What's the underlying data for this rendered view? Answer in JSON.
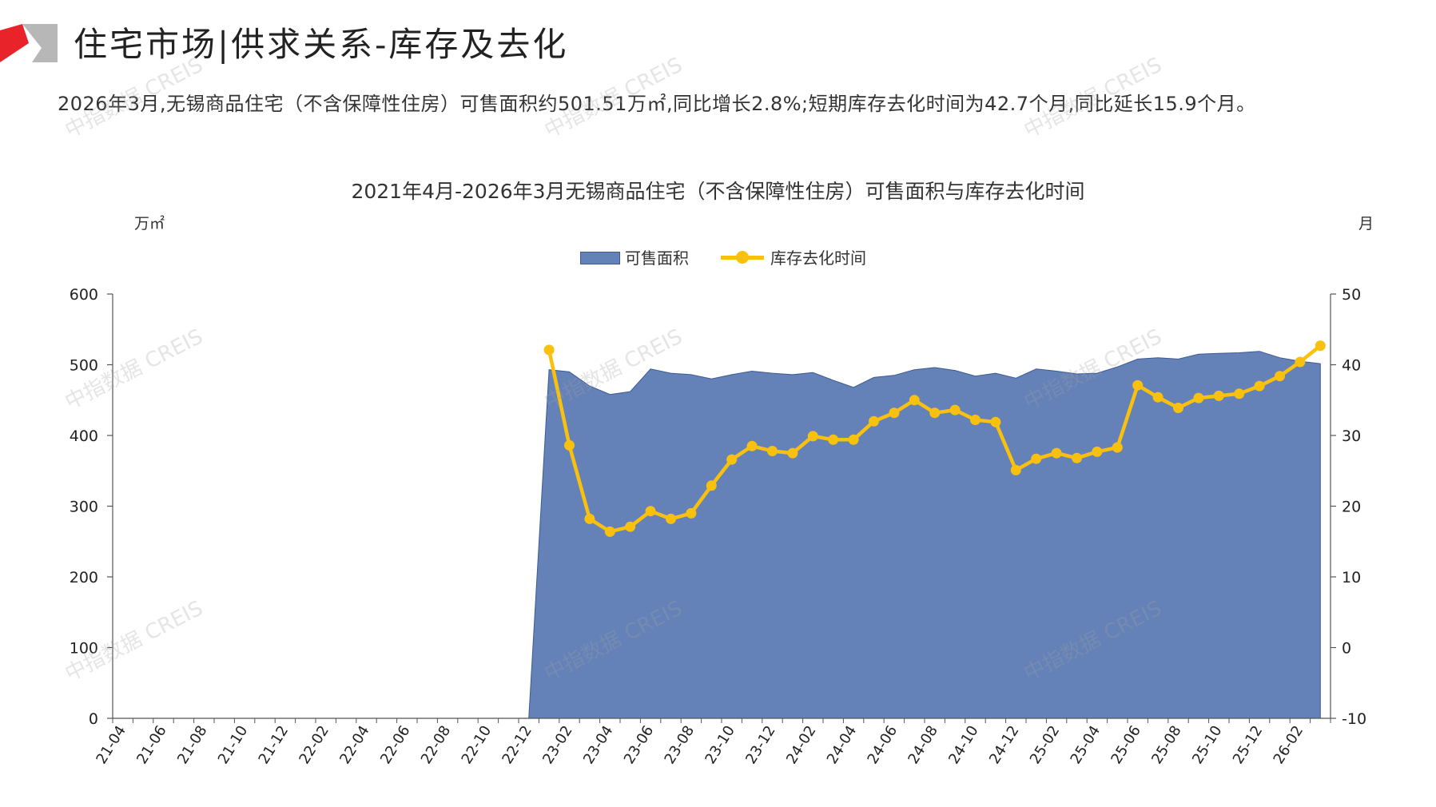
{
  "header": {
    "title": "住宅市场|供求关系-库存及去化"
  },
  "summary": "2026年3月,无锡商品住宅（不含保障性住房）可售面积约501.51万㎡,同比增长2.8%;短期库存去化时间为42.7个月,同比延长15.9个月。",
  "watermark": "中指数据 CREIS",
  "colors": {
    "area_fill": "#6482b8",
    "area_stroke": "#3d5a92",
    "line": "#f9c10d",
    "logo_red": "#e8232a",
    "logo_gray": "#b7b7b7"
  },
  "chart_data": {
    "type": "area",
    "title": "2021年4月-2026年3月无锡商品住宅（不含保障性住房）可售面积与库存去化时间",
    "y_left_label": "万㎡",
    "y_right_label": "月",
    "y_left_range": [
      0,
      600
    ],
    "y_left_ticks": [
      "0",
      "100",
      "200",
      "300",
      "400",
      "500",
      "600"
    ],
    "y_right_range": [
      -10,
      50
    ],
    "y_right_ticks": [
      "-10",
      "0",
      "10",
      "20",
      "30",
      "40",
      "50"
    ],
    "legend_position": "top-center",
    "grid": false,
    "x_tick_labels": [
      "21-04",
      "21-06",
      "21-08",
      "21-10",
      "21-12",
      "22-02",
      "22-04",
      "22-06",
      "22-08",
      "22-10",
      "22-12",
      "23-02",
      "23-04",
      "23-06",
      "23-08",
      "23-10",
      "23-12",
      "24-02",
      "24-04",
      "24-06",
      "24-08",
      "24-10",
      "24-12",
      "25-02",
      "25-04",
      "25-06",
      "25-08",
      "25-10",
      "25-12",
      "26-02"
    ],
    "series": [
      {
        "name": "可售面积",
        "type": "area",
        "axis": "left",
        "x_start": "22-12",
        "x_end": "26-03",
        "values": [
          0,
          493,
          490,
          470,
          458,
          462,
          494,
          488,
          486,
          480,
          486,
          491,
          488,
          486,
          489,
          478,
          468,
          482,
          485,
          493,
          496,
          492,
          484,
          488,
          481,
          494,
          491,
          487,
          488,
          497,
          508,
          510,
          508,
          515,
          516,
          517,
          519,
          510,
          505,
          501.5
        ]
      },
      {
        "name": "库存去化时间",
        "type": "line",
        "axis": "right",
        "x_start": "23-01",
        "x_end": "26-03",
        "values": [
          42.1,
          28.6,
          18.2,
          16.4,
          17.1,
          19.3,
          18.2,
          19.0,
          22.9,
          26.6,
          28.5,
          27.8,
          27.5,
          29.9,
          29.4,
          29.4,
          32.0,
          33.2,
          35.0,
          33.2,
          33.6,
          32.2,
          31.9,
          25.1,
          26.7,
          27.5,
          26.8,
          27.7,
          28.3,
          37.1,
          35.4,
          33.9,
          35.3,
          35.6,
          35.9,
          37.0,
          38.4,
          40.4,
          42.7
        ]
      }
    ]
  }
}
